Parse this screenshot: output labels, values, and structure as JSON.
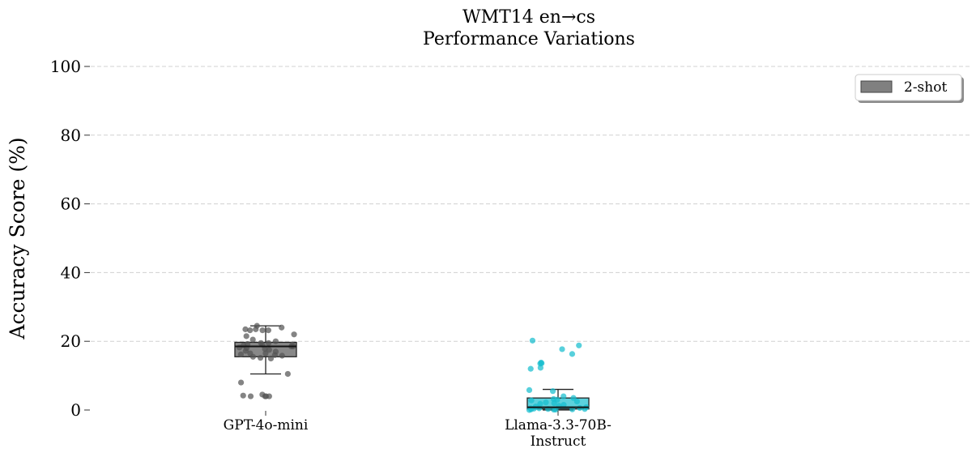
{
  "chart_data": {
    "type": "box",
    "title_lines": [
      "WMT14 en→cs",
      "Performance Variations"
    ],
    "ylabel": "Accuracy Score (%)",
    "xlabel": "",
    "ylim": [
      0,
      100
    ],
    "yticks": [
      "0",
      "20",
      "40",
      "60",
      "80",
      "100"
    ],
    "grid": "horizontal dashed",
    "legend": {
      "placement": "top-right",
      "entries": [
        {
          "label": "2-shot",
          "color": "#808080"
        }
      ]
    },
    "categories": [
      {
        "label_lines": [
          "GPT-4o-mini"
        ],
        "color": "#555555"
      },
      {
        "label_lines": [
          "Llama-3.3-70B-",
          "Instruct"
        ],
        "color": "#17becf"
      }
    ],
    "series": [
      {
        "name": "2-shot",
        "boxes": [
          {
            "whisker_low": 10.5,
            "q1": 15.5,
            "median": 18.5,
            "q3": 19.7,
            "whisker_high": 24.5,
            "points": [
              4.0,
              4.0,
              4.2,
              4.0,
              4.5,
              4.0,
              8.0,
              10.5,
              15.0,
              15.2,
              15.5,
              15.8,
              16.0,
              16.2,
              16.5,
              16.5,
              17.0,
              17.2,
              17.5,
              17.8,
              18.0,
              18.2,
              18.5,
              18.5,
              18.8,
              19.0,
              19.0,
              19.2,
              19.5,
              19.5,
              20.0,
              20.5,
              21.5,
              22.0,
              23.2,
              23.2,
              23.2,
              23.5,
              23.5,
              24.0,
              24.5
            ]
          },
          {
            "whisker_low": 0.0,
            "q1": 0.3,
            "median": 0.8,
            "q3": 3.5,
            "whisker_high": 6.0,
            "points": [
              0.0,
              0.1,
              0.1,
              0.2,
              0.2,
              0.3,
              0.3,
              0.4,
              0.5,
              0.5,
              0.6,
              0.8,
              1.0,
              1.2,
              1.5,
              1.8,
              2.0,
              2.2,
              2.5,
              2.8,
              3.0,
              3.2,
              3.5,
              4.0,
              5.5,
              5.8,
              12.0,
              12.3,
              13.5,
              13.6,
              13.8,
              16.3,
              17.7,
              18.8,
              20.2
            ]
          }
        ]
      }
    ]
  }
}
